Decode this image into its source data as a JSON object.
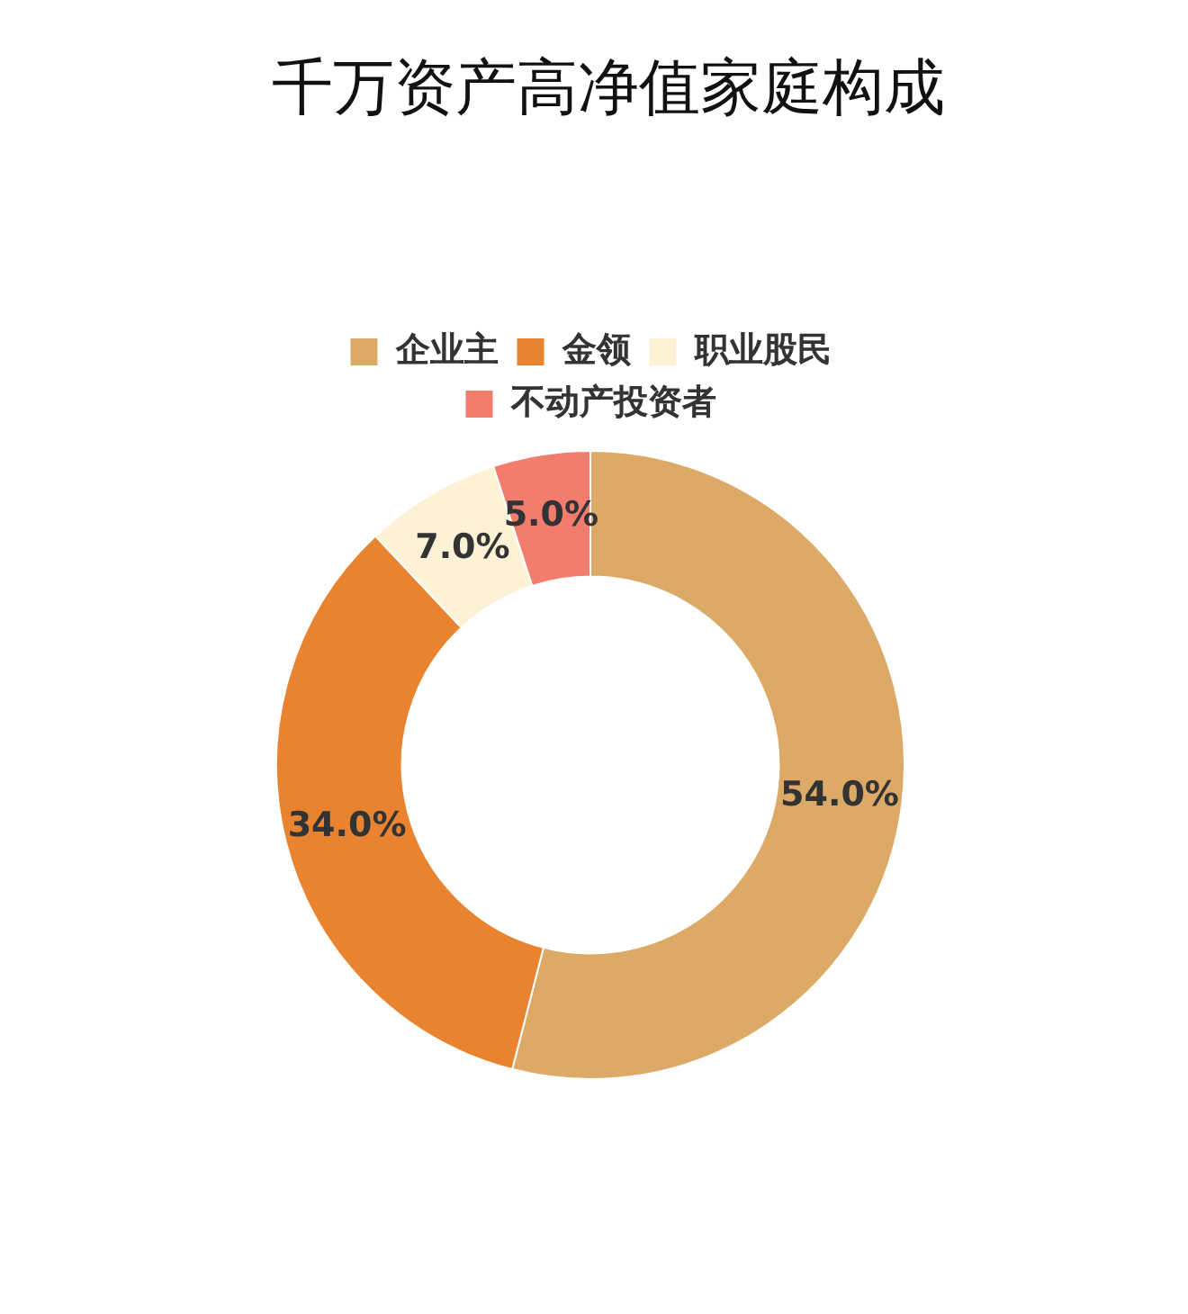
{
  "chart_data": {
    "type": "donut",
    "title": "千万资产高净值家庭构成",
    "categories": [
      "企业主",
      "金领",
      "职业股民",
      "不动产投资者"
    ],
    "values": [
      54.0,
      34.0,
      7.0,
      5.0
    ],
    "colors": [
      "#dcaa66",
      "#e9832f",
      "#fdf2d5",
      "#f27d6f"
    ],
    "value_labels": [
      "54.0%",
      "34.0%",
      "7.0%",
      "5.0%"
    ],
    "legend": "top"
  }
}
